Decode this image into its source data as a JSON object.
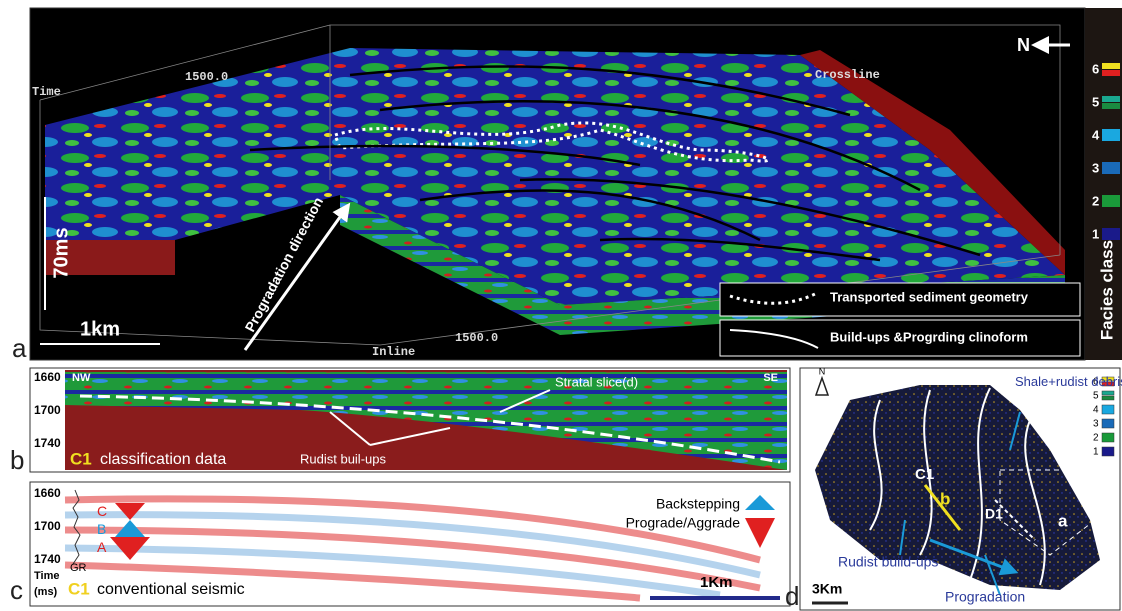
{
  "panel_a": {
    "label": "a",
    "time_axis": "Time",
    "crossline_value": "1500.0",
    "crossline": "Crossline",
    "inline_value": "1500.0",
    "inline": "Inline",
    "vertical_scale": "70ms",
    "horizontal_scale": "1km",
    "arrow_label": "Progradation direction",
    "north": "N",
    "legend": [
      "Transported sediment geometry",
      "Build-ups &Progrding clinoform"
    ],
    "facies_title": "Facies class",
    "facies_classes": [
      "6",
      "5",
      "4",
      "3",
      "2",
      "1"
    ]
  },
  "panel_b": {
    "label": "b",
    "depths": [
      "1660",
      "1700",
      "1740"
    ],
    "left": "NW",
    "right": "SE",
    "well": "C1",
    "caption": "classification data",
    "slice": "Stratal slice(d)",
    "buildups": "Rudist buil-ups"
  },
  "panel_c": {
    "label": "c",
    "depths": [
      "1660",
      "1700",
      "1740"
    ],
    "cycles": [
      "C",
      "B",
      "A"
    ],
    "log": "GR",
    "time_label": "Time",
    "time_unit": "(ms)",
    "well": "C1",
    "caption": "conventional seismic",
    "legend": [
      "Backstepping",
      "Prograde/Aggrade"
    ],
    "scale": "1Km"
  },
  "panel_d": {
    "label": "d",
    "north": "N",
    "classes": [
      "6",
      "5",
      "4",
      "3",
      "2",
      "1"
    ],
    "debris": "Shale+rudist debris",
    "well": "C1",
    "line_b": "b",
    "well2": "D1",
    "line_a": "a",
    "buildups": "Rudist build-ups",
    "scale": "3Km",
    "progradation": "Progradation"
  }
}
